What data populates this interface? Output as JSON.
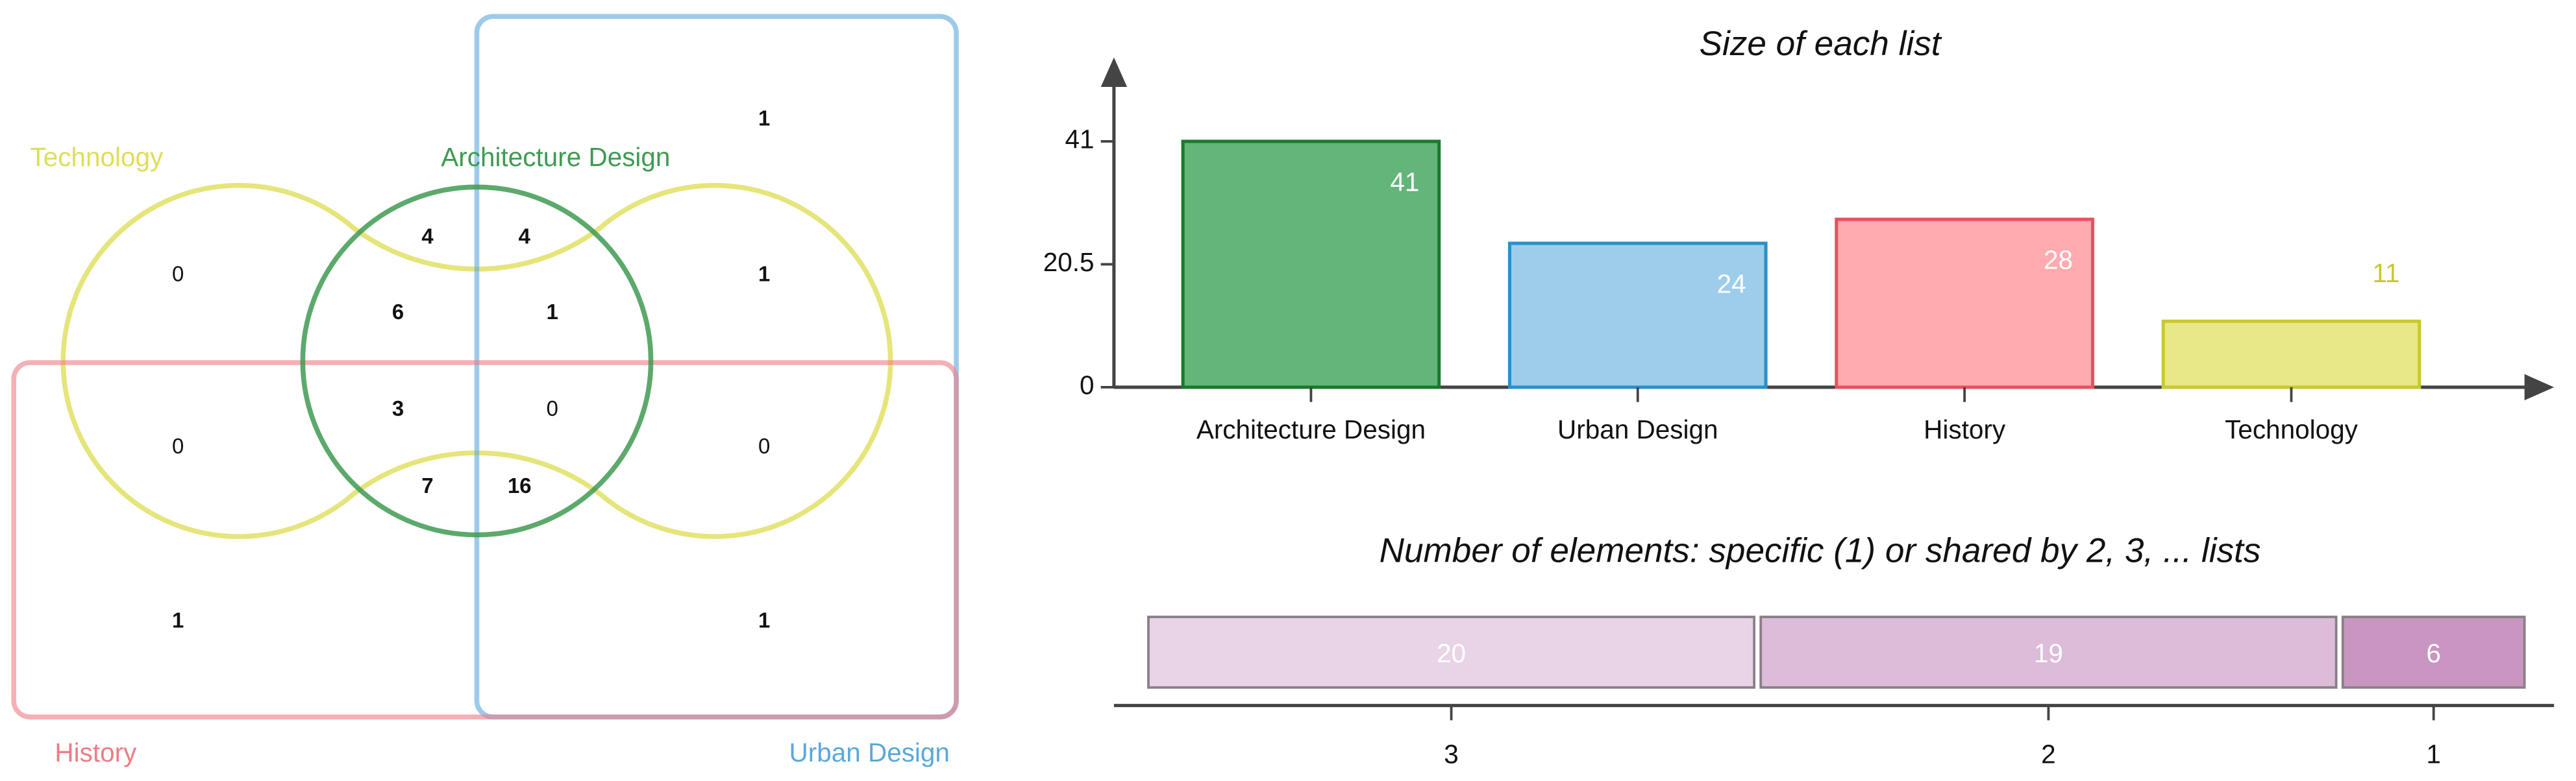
{
  "chart_data": [
    {
      "type": "venn",
      "sets": [
        {
          "name": "Technology",
          "color": "#dede5a"
        },
        {
          "name": "Architecture Design",
          "color": "#3f9a52"
        },
        {
          "name": "History",
          "color": "#ee7c86"
        },
        {
          "name": "Urban Design",
          "color": "#5aa8dc"
        }
      ],
      "regions": [
        1,
        0,
        4,
        4,
        1,
        6,
        1,
        0,
        3,
        0,
        0,
        7,
        16,
        1,
        1
      ]
    },
    {
      "type": "bar",
      "title": "Size of each list",
      "categories": [
        "Architecture Design",
        "Urban Design",
        "History",
        "Technology"
      ],
      "values": [
        41,
        24,
        28,
        11
      ],
      "colors": [
        "#63b57a",
        "#9dcdea",
        "#ffabb0",
        "#e8e888"
      ],
      "edge_colors": [
        "#1a7a2a",
        "#2a90c8",
        "#e85060",
        "#c8c830"
      ],
      "ylim": [
        0,
        55
      ],
      "yticks": [
        0,
        20.5,
        41
      ]
    },
    {
      "type": "stacked_bar",
      "title": "Number of elements: specific (1) or shared by 2, 3, ... lists",
      "categories": [
        "3",
        "2",
        "1"
      ],
      "values": [
        20,
        19,
        6
      ],
      "colors": [
        "#e8d4e6",
        "#dcbcd8",
        "#c896c0"
      ]
    }
  ]
}
